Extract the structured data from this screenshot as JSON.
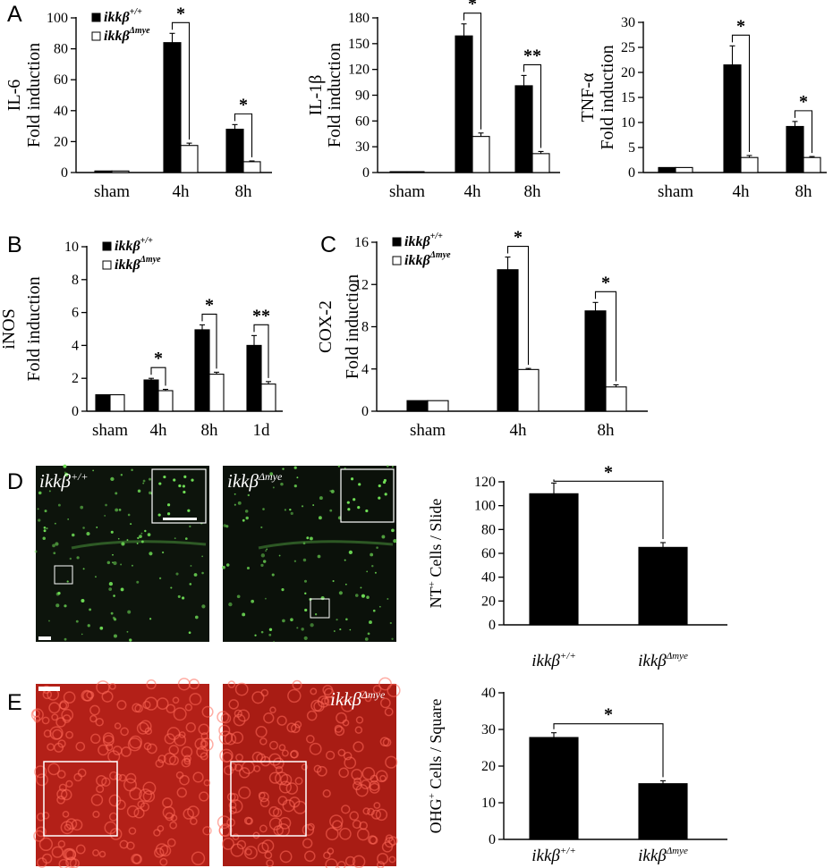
{
  "panel_letters": [
    "A",
    "B",
    "C",
    "D",
    "E"
  ],
  "micrographs": [
    {
      "panel": "D",
      "label_base": "ikkβ",
      "label_sup": "+/+",
      "color": "#0d140c",
      "dot_color": "#6edc55"
    },
    {
      "panel": "D",
      "label_base": "ikkβ",
      "label_sup": "Δmye",
      "color": "#0b110a",
      "dot_color": "#6edc55"
    },
    {
      "panel": "E",
      "label_base": "",
      "label_sup": "",
      "color": "#b32018",
      "dot_color": "#ff6a5a"
    },
    {
      "panel": "E",
      "label_base": "ikkβ",
      "label_sup": "Δmye",
      "color": "#a81c14",
      "dot_color": "#ff6a5a"
    }
  ],
  "colors": {
    "black": "#000000",
    "white": "#ffffff"
  },
  "chart_data": [
    {
      "id": "il6",
      "panel": "A",
      "type": "bar",
      "ylabel_main": "IL-6",
      "ylabel_sub": "Fold induction",
      "ylim": [
        0,
        100
      ],
      "yticks": [
        0,
        20,
        40,
        60,
        80,
        100
      ],
      "categories": [
        "sham",
        "4h",
        "8h"
      ],
      "series": [
        {
          "name_base": "ikkβ",
          "name_sup": "+/+",
          "fill": "#000000",
          "values": [
            1,
            84,
            28
          ],
          "errors": [
            0,
            6,
            3
          ]
        },
        {
          "name_base": "ikkβ",
          "name_sup": "Δmye",
          "fill": "#ffffff",
          "values": [
            1,
            17.5,
            7
          ],
          "errors": [
            0,
            1.5,
            0.5
          ]
        }
      ],
      "significance": [
        {
          "category": "4h",
          "label": "*"
        },
        {
          "category": "8h",
          "label": "*"
        }
      ],
      "legend": "top-left"
    },
    {
      "id": "il1b",
      "panel": "A",
      "type": "bar",
      "ylabel_main": "IL-1β",
      "ylabel_sub": "Fold induction",
      "ylim": [
        0,
        180
      ],
      "yticks": [
        0,
        30,
        60,
        90,
        120,
        150,
        180
      ],
      "categories": [
        "sham",
        "4h",
        "8h"
      ],
      "series": [
        {
          "name_base": "ikkβ",
          "name_sup": "+/+",
          "fill": "#000000",
          "values": [
            1,
            159,
            101
          ],
          "errors": [
            0,
            14,
            12
          ]
        },
        {
          "name_base": "ikkβ",
          "name_sup": "Δmye",
          "fill": "#ffffff",
          "values": [
            1,
            42,
            22
          ],
          "errors": [
            0,
            4,
            2.5
          ]
        }
      ],
      "significance": [
        {
          "category": "4h",
          "label": "*"
        },
        {
          "category": "8h",
          "label": "**"
        }
      ],
      "legend": "none"
    },
    {
      "id": "tnfa",
      "panel": "A",
      "type": "bar",
      "ylabel_main": "TNF-α",
      "ylabel_sub": "Fold induction",
      "ylim": [
        0,
        30
      ],
      "yticks": [
        0,
        5,
        10,
        15,
        20,
        25,
        30
      ],
      "categories": [
        "sham",
        "4h",
        "8h"
      ],
      "series": [
        {
          "name_base": "ikkβ",
          "name_sup": "+/+",
          "fill": "#000000",
          "values": [
            1,
            21.5,
            9.2
          ],
          "errors": [
            0,
            3.8,
            1
          ]
        },
        {
          "name_base": "ikkβ",
          "name_sup": "Δmye",
          "fill": "#ffffff",
          "values": [
            1,
            3,
            3
          ],
          "errors": [
            0,
            0.4,
            0.2
          ]
        }
      ],
      "significance": [
        {
          "category": "4h",
          "label": "*"
        },
        {
          "category": "8h",
          "label": "*"
        }
      ],
      "legend": "none"
    },
    {
      "id": "inos",
      "panel": "B",
      "type": "bar",
      "ylabel_main": "iNOS",
      "ylabel_sub": "Fold induction",
      "ylim": [
        0,
        10
      ],
      "yticks": [
        0,
        2,
        4,
        6,
        8,
        10
      ],
      "categories": [
        "sham",
        "4h",
        "8h",
        "1d"
      ],
      "series": [
        {
          "name_base": "ikkβ",
          "name_sup": "+/+",
          "fill": "#000000",
          "values": [
            1,
            1.9,
            4.95,
            4
          ],
          "errors": [
            0,
            0.1,
            0.3,
            0.6
          ]
        },
        {
          "name_base": "ikkβ",
          "name_sup": "Δmye",
          "fill": "#ffffff",
          "values": [
            1,
            1.25,
            2.25,
            1.65
          ],
          "errors": [
            0,
            0.08,
            0.12,
            0.15
          ]
        }
      ],
      "significance": [
        {
          "category": "4h",
          "label": "*"
        },
        {
          "category": "8h",
          "label": "*"
        },
        {
          "category": "1d",
          "label": "**"
        }
      ],
      "legend": "top-left"
    },
    {
      "id": "cox2",
      "panel": "C",
      "type": "bar",
      "ylabel_main": "COX-2",
      "ylabel_sub": "Fold induction",
      "ylim": [
        0,
        16
      ],
      "yticks": [
        0,
        4,
        8,
        12,
        16
      ],
      "categories": [
        "sham",
        "4h",
        "8h"
      ],
      "series": [
        {
          "name_base": "ikkβ",
          "name_sup": "+/+",
          "fill": "#000000",
          "values": [
            1,
            13.4,
            9.5
          ],
          "errors": [
            0,
            1.2,
            0.8
          ]
        },
        {
          "name_base": "ikkβ",
          "name_sup": "Δmye",
          "fill": "#ffffff",
          "values": [
            1,
            3.95,
            2.3
          ],
          "errors": [
            0,
            0.1,
            0.2
          ]
        }
      ],
      "significance": [
        {
          "category": "4h",
          "label": "*"
        },
        {
          "category": "8h",
          "label": "*"
        }
      ],
      "legend": "top-left"
    },
    {
      "id": "nt",
      "panel": "D",
      "type": "bar",
      "ylabel_main": "",
      "ylabel_sub": "",
      "ylabel_parts": [
        "NT",
        "+",
        " Cells / Slide"
      ],
      "ylim": [
        0,
        120
      ],
      "yticks": [
        0,
        20,
        40,
        60,
        80,
        100,
        120
      ],
      "categories": [
        "ikkβ|+/+",
        "ikkβ|Δmye"
      ],
      "series": [
        {
          "name_base": "",
          "name_sup": "",
          "fill": "#000000",
          "values": [
            110,
            65
          ],
          "errors": [
            9,
            4
          ]
        }
      ],
      "significance": [
        {
          "category": "all",
          "label": "*"
        }
      ],
      "legend": "none"
    },
    {
      "id": "ohg",
      "panel": "E",
      "type": "bar",
      "ylabel_main": "",
      "ylabel_sub": "",
      "ylabel_parts": [
        "OHG",
        "+",
        " Cells / Square"
      ],
      "ylim": [
        0,
        40
      ],
      "yticks": [
        0,
        10,
        20,
        30,
        40
      ],
      "categories": [
        "ikkβ|+/+",
        "ikkβ|Δmye"
      ],
      "series": [
        {
          "name_base": "",
          "name_sup": "",
          "fill": "#000000",
          "values": [
            27.8,
            15.2
          ],
          "errors": [
            1.3,
            0.8
          ]
        }
      ],
      "significance": [
        {
          "category": "all",
          "label": "*"
        }
      ],
      "legend": "none"
    }
  ]
}
